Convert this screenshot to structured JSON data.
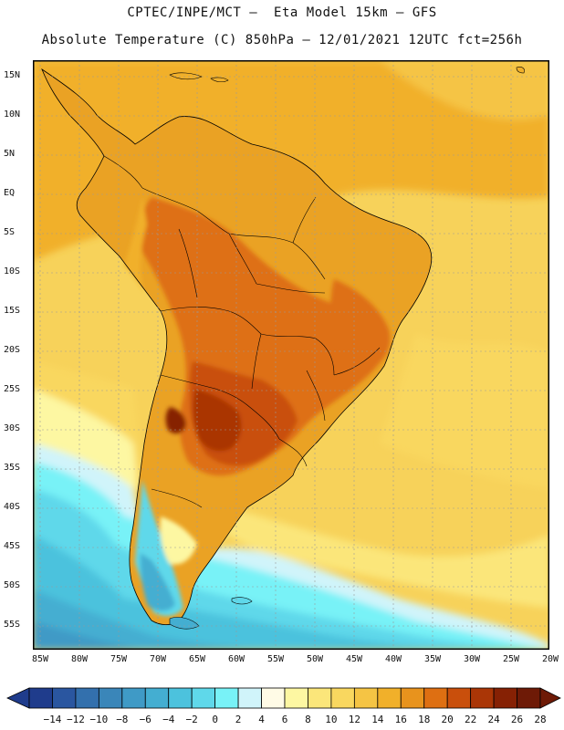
{
  "header": {
    "line1": "CPTEC/INPE/MCT –  Eta Model 15km – GFS",
    "line2": "Absolute Temperature (C) 850hPa – 12/01/2021 12UTC fct=256h"
  },
  "map": {
    "lat_labels": [
      "15N",
      "10N",
      "5N",
      "EQ",
      "5S",
      "10S",
      "15S",
      "20S",
      "25S",
      "30S",
      "35S",
      "40S",
      "45S",
      "50S",
      "55S"
    ],
    "lon_labels": [
      "85W",
      "80W",
      "75W",
      "70W",
      "65W",
      "60W",
      "55W",
      "50W",
      "45W",
      "40W",
      "35W",
      "30W",
      "25W",
      "20W"
    ]
  },
  "legend": {
    "labels": [
      "-14",
      "-12",
      "-10",
      "-8",
      "-6",
      "-4",
      "-2",
      "0",
      "2",
      "4",
      "6",
      "8",
      "10",
      "12",
      "14",
      "16",
      "18",
      "20",
      "22",
      "24",
      "26",
      "28"
    ],
    "colors": [
      "#1f3c8c",
      "#2a56a0",
      "#3370ad",
      "#3a86b9",
      "#3f9ac6",
      "#44aed1",
      "#4cc2dd",
      "#5fd8ea",
      "#78f2f7",
      "#d0f4fa",
      "#fffbe6",
      "#fdf7a2",
      "#fbe67a",
      "#f9d75f",
      "#f5c444",
      "#f1b02a",
      "#e8931d",
      "#de6f12",
      "#c94f0c",
      "#aa3606",
      "#862104",
      "#6e1a06"
    ]
  },
  "colors": {
    "ocean_base": "#f7d25a",
    "land_base": "#eaa224",
    "border": "#000000"
  }
}
